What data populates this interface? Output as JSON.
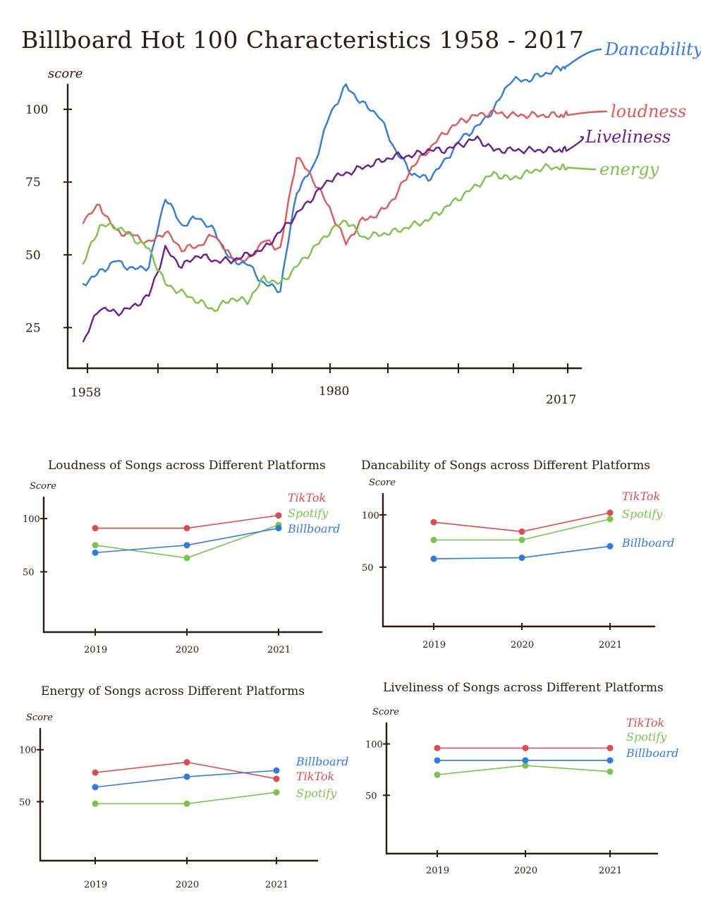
{
  "colors": {
    "Dancability": "#2f7be6",
    "loudness": "#e05a5a",
    "Liveliness": "#6b1f8f",
    "energy": "#7bc44a",
    "TikTok": "#e04a4a",
    "Spotify": "#7bc44a",
    "Billboard": "#2f7be6"
  },
  "chart_data": [
    {
      "type": "line",
      "title": "Billboard Hot 100 Characteristics 1958 - 2017",
      "xlabel": "",
      "ylabel": "score",
      "xlim": [
        1957,
        2020
      ],
      "ylim": [
        0,
        110
      ],
      "x_ticks": [
        "1958",
        "1980",
        "2017"
      ],
      "y_ticks": [
        "100",
        "75",
        "50",
        "25"
      ],
      "x": [
        1958,
        1960,
        1962,
        1964,
        1966,
        1968,
        1970,
        1972,
        1974,
        1976,
        1978,
        1980,
        1982,
        1984,
        1986,
        1988,
        1990,
        1992,
        1994,
        1996,
        1998,
        2000,
        2002,
        2004,
        2006,
        2008,
        2010,
        2012,
        2014,
        2016,
        2017
      ],
      "series": [
        {
          "name": "Dancability",
          "values": [
            40,
            44,
            48,
            45,
            46,
            70,
            60,
            63,
            58,
            48,
            47,
            40,
            38,
            72,
            80,
            98,
            108,
            102,
            98,
            86,
            78,
            76,
            82,
            90,
            94,
            100,
            110,
            110,
            112,
            114,
            115
          ]
        },
        {
          "name": "loudness",
          "values": [
            62,
            67,
            58,
            57,
            54,
            58,
            52,
            53,
            57,
            49,
            48,
            55,
            52,
            84,
            76,
            66,
            54,
            62,
            64,
            70,
            80,
            86,
            92,
            96,
            98,
            99,
            98,
            98,
            98,
            98,
            98
          ]
        },
        {
          "name": "Liveliness",
          "values": [
            20,
            32,
            30,
            32,
            36,
            52,
            46,
            50,
            48,
            48,
            50,
            52,
            58,
            64,
            70,
            76,
            78,
            80,
            82,
            84,
            84,
            86,
            86,
            88,
            90,
            86,
            86,
            86,
            86,
            86,
            86
          ]
        },
        {
          "name": "energy",
          "values": [
            47,
            60,
            60,
            56,
            52,
            40,
            37,
            34,
            31,
            35,
            34,
            42,
            40,
            46,
            52,
            58,
            62,
            56,
            57,
            58,
            60,
            62,
            66,
            70,
            74,
            78,
            76,
            78,
            80,
            80,
            80
          ]
        }
      ]
    },
    {
      "type": "line",
      "title": "Loudness of Songs across Different Platforms",
      "ylabel": "Score",
      "categories": [
        "2019",
        "2020",
        "2021"
      ],
      "y_ticks": [
        "100",
        "50"
      ],
      "ylim": [
        0,
        110
      ],
      "legend_order": [
        "TikTok",
        "Spotify",
        "Billboard"
      ],
      "series": [
        {
          "name": "TikTok",
          "values": [
            91,
            91,
            103
          ]
        },
        {
          "name": "Spotify",
          "values": [
            75,
            63,
            94
          ]
        },
        {
          "name": "Billboard",
          "values": [
            68,
            75,
            91
          ]
        }
      ]
    },
    {
      "type": "line",
      "title": "Dancability of Songs across Different Platforms",
      "ylabel": "Score",
      "categories": [
        "2019",
        "2020",
        "2021"
      ],
      "y_ticks": [
        "100",
        "50"
      ],
      "ylim": [
        0,
        110
      ],
      "legend_order": [
        "TikTok",
        "Spotify",
        "Billboard"
      ],
      "series": [
        {
          "name": "TikTok",
          "values": [
            93,
            84,
            102
          ]
        },
        {
          "name": "Spotify",
          "values": [
            76,
            76,
            96
          ]
        },
        {
          "name": "Billboard",
          "values": [
            58,
            59,
            70
          ]
        }
      ]
    },
    {
      "type": "line",
      "title": "Energy of Songs across Different Platforms",
      "ylabel": "Score",
      "categories": [
        "2019",
        "2020",
        "2021"
      ],
      "y_ticks": [
        "100",
        "50"
      ],
      "ylim": [
        0,
        110
      ],
      "legend_order": [
        "Billboard",
        "TikTok",
        "Spotify"
      ],
      "series": [
        {
          "name": "TikTok",
          "values": [
            78,
            88,
            72
          ]
        },
        {
          "name": "Spotify",
          "values": [
            48,
            48,
            59
          ]
        },
        {
          "name": "Billboard",
          "values": [
            64,
            74,
            80
          ]
        }
      ]
    },
    {
      "type": "line",
      "title": "Liveliness of Songs across Different Platforms",
      "ylabel": "Score",
      "categories": [
        "2019",
        "2020",
        "2021"
      ],
      "y_ticks": [
        "100",
        "50"
      ],
      "ylim": [
        0,
        110
      ],
      "legend_order": [
        "TikTok",
        "Spotify",
        "Billboard"
      ],
      "series": [
        {
          "name": "TikTok",
          "values": [
            96,
            96,
            96
          ]
        },
        {
          "name": "Spotify",
          "values": [
            70,
            79,
            73
          ]
        },
        {
          "name": "Billboard",
          "values": [
            84,
            84,
            84
          ]
        }
      ]
    }
  ]
}
